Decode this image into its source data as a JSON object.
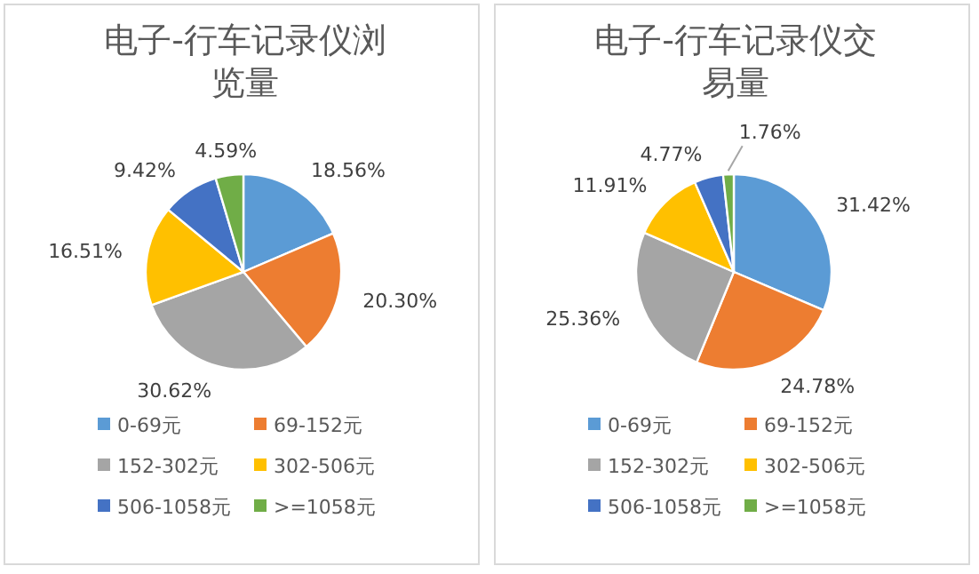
{
  "chart_data": [
    {
      "type": "pie",
      "title": "电子-行车记录仪浏览量",
      "categories": [
        "0-69元",
        "69-152元",
        "152-302元",
        "302-506元",
        "506-1058元",
        ">=1058元"
      ],
      "values": [
        18.56,
        20.3,
        30.62,
        16.51,
        9.42,
        4.59
      ],
      "value_labels": [
        "18.56%",
        "20.30%",
        "30.62%",
        "16.51%",
        "9.42%",
        "4.59%"
      ],
      "colors": [
        "#5b9bd5",
        "#ed7d31",
        "#a5a5a5",
        "#ffc000",
        "#4472c4",
        "#70ad47"
      ],
      "legend": "bottom"
    },
    {
      "type": "pie",
      "title": "电子-行车记录仪交易量",
      "categories": [
        "0-69元",
        "69-152元",
        "152-302元",
        "302-506元",
        "506-1058元",
        ">=1058元"
      ],
      "values": [
        31.42,
        24.78,
        25.36,
        11.91,
        4.77,
        1.76
      ],
      "value_labels": [
        "31.42%",
        "24.78%",
        "25.36%",
        "11.91%",
        "4.77%",
        "1.76%"
      ],
      "colors": [
        "#5b9bd5",
        "#ed7d31",
        "#a5a5a5",
        "#ffc000",
        "#4472c4",
        "#70ad47"
      ],
      "legend": "bottom"
    }
  ]
}
